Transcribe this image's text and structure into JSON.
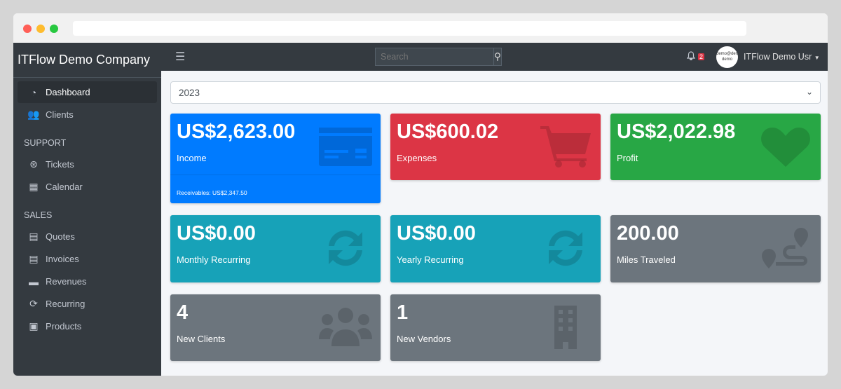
{
  "sidebar": {
    "brand": "ITFlow Demo Company",
    "items": [
      {
        "label": "Dashboard",
        "icon": "tachometer-icon"
      },
      {
        "label": "Clients",
        "icon": "users-icon"
      }
    ],
    "support_header": "SUPPORT",
    "support": [
      {
        "label": "Tickets",
        "icon": "life-ring-icon"
      },
      {
        "label": "Calendar",
        "icon": "calendar-icon"
      }
    ],
    "sales_header": "SALES",
    "sales": [
      {
        "label": "Quotes",
        "icon": "file-icon"
      },
      {
        "label": "Invoices",
        "icon": "invoice-icon"
      },
      {
        "label": "Revenues",
        "icon": "credit-card-icon"
      },
      {
        "label": "Recurring",
        "icon": "sync-icon"
      },
      {
        "label": "Products",
        "icon": "box-icon"
      }
    ]
  },
  "topbar": {
    "search_placeholder": "Search",
    "notifications": "2",
    "avatar_text": "demo@demo demo",
    "user": "ITFlow Demo Usr"
  },
  "year": "2023",
  "cards": [
    {
      "value": "US$2,623.00",
      "label": "Income",
      "footer": "Receivables: US$2,347.50",
      "color": "#007bff"
    },
    {
      "value": "US$600.02",
      "label": "Expenses",
      "color": "#dc3545"
    },
    {
      "value": "US$2,022.98",
      "label": "Profit",
      "color": "#28a745"
    },
    {
      "value": "US$0.00",
      "label": "Monthly Recurring",
      "color": "#17a2b8"
    },
    {
      "value": "US$0.00",
      "label": "Yearly Recurring",
      "color": "#17a2b8"
    },
    {
      "value": "200.00",
      "label": "Miles Traveled",
      "color": "#6c757d"
    },
    {
      "value": "4",
      "label": "New Clients",
      "color": "#6c757d"
    },
    {
      "value": "1",
      "label": "New Vendors",
      "color": "#6c757d"
    }
  ]
}
